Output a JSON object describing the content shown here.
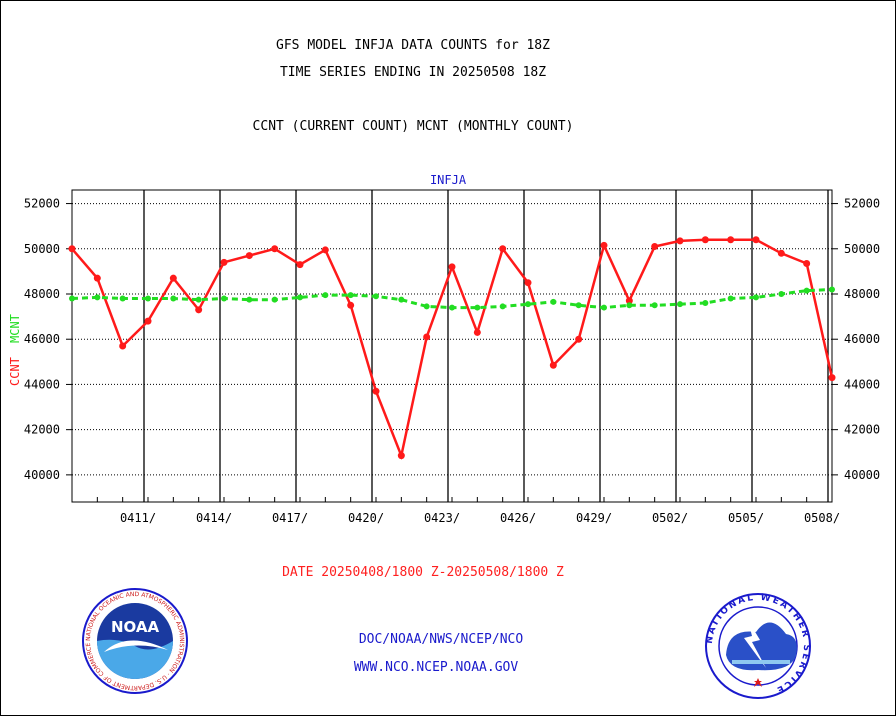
{
  "header": {
    "title_line1": "GFS MODEL INFJA DATA COUNTS for 18Z",
    "title_line2": "TIME SERIES ENDING IN 20250508 18Z",
    "subtitle": "CCNT (CURRENT COUNT) MCNT (MONTHLY COUNT)"
  },
  "footer": {
    "date_range": "DATE 20250408/1800 Z-20250508/1800 Z",
    "link1": "DOC/NOAA/NWS/NCEP/NCO",
    "link2": "WWW.NCO.NCEP.NOAA.GOV",
    "noaa_logo_text": "NOAA",
    "noaa_ring_text": "NATIONAL OCEANIC AND ATMOSPHERIC ADMINISTRATION · U.S. DEPARTMENT OF COMMERCE",
    "nws_ring_text": "NATIONAL WEATHER SERVICE"
  },
  "chart_data": {
    "type": "line",
    "panel_label": "INFJA",
    "ylabel_series1": "CCNT",
    "ylabel_series2": "MCNT",
    "ylim": [
      38800,
      52600
    ],
    "yticks": [
      40000,
      42000,
      44000,
      46000,
      48000,
      50000,
      52000
    ],
    "ytick_labels": [
      "40000",
      "42000",
      "44000",
      "46000",
      "48000",
      "50000",
      "52000"
    ],
    "xlim": [
      0,
      30
    ],
    "xticks": [
      3,
      6,
      9,
      12,
      15,
      18,
      21,
      24,
      27,
      30
    ],
    "xtick_labels": [
      "0411/",
      "0414/",
      "0417/",
      "0420/",
      "0423/",
      "0426/",
      "0429/",
      "0502/",
      "0505/",
      "0508/"
    ],
    "grid": true,
    "series": [
      {
        "name": "CCNT",
        "color": "#ff1a1a",
        "x": [
          0,
          1,
          2,
          3,
          4,
          5,
          6,
          7,
          8,
          9,
          10,
          11,
          12,
          13,
          14,
          15,
          16,
          17,
          18,
          19,
          20,
          21,
          22,
          23,
          24,
          25,
          26,
          27,
          28,
          29,
          30
        ],
        "values": [
          50000,
          48700,
          45700,
          46800,
          48700,
          47300,
          49400,
          49700,
          50000,
          49300,
          49950,
          47500,
          43700,
          40850,
          46100,
          49200,
          46300,
          50000,
          48500,
          44850,
          46000,
          50150,
          47700,
          50100,
          50350,
          50400,
          50400,
          50400,
          49800,
          49350,
          44300
        ]
      },
      {
        "name": "MCNT",
        "color": "#22dd22",
        "x": [
          0,
          1,
          2,
          3,
          4,
          5,
          6,
          7,
          8,
          9,
          10,
          11,
          12,
          13,
          14,
          15,
          16,
          17,
          18,
          19,
          20,
          21,
          22,
          23,
          24,
          25,
          26,
          27,
          28,
          29,
          30
        ],
        "values": [
          47800,
          47850,
          47800,
          47800,
          47800,
          47750,
          47800,
          47750,
          47750,
          47850,
          47950,
          47950,
          47900,
          47750,
          47450,
          47400,
          47400,
          47450,
          47550,
          47650,
          47500,
          47400,
          47500,
          47500,
          47550,
          47600,
          47800,
          47850,
          48000,
          48150,
          48200
        ]
      }
    ]
  }
}
